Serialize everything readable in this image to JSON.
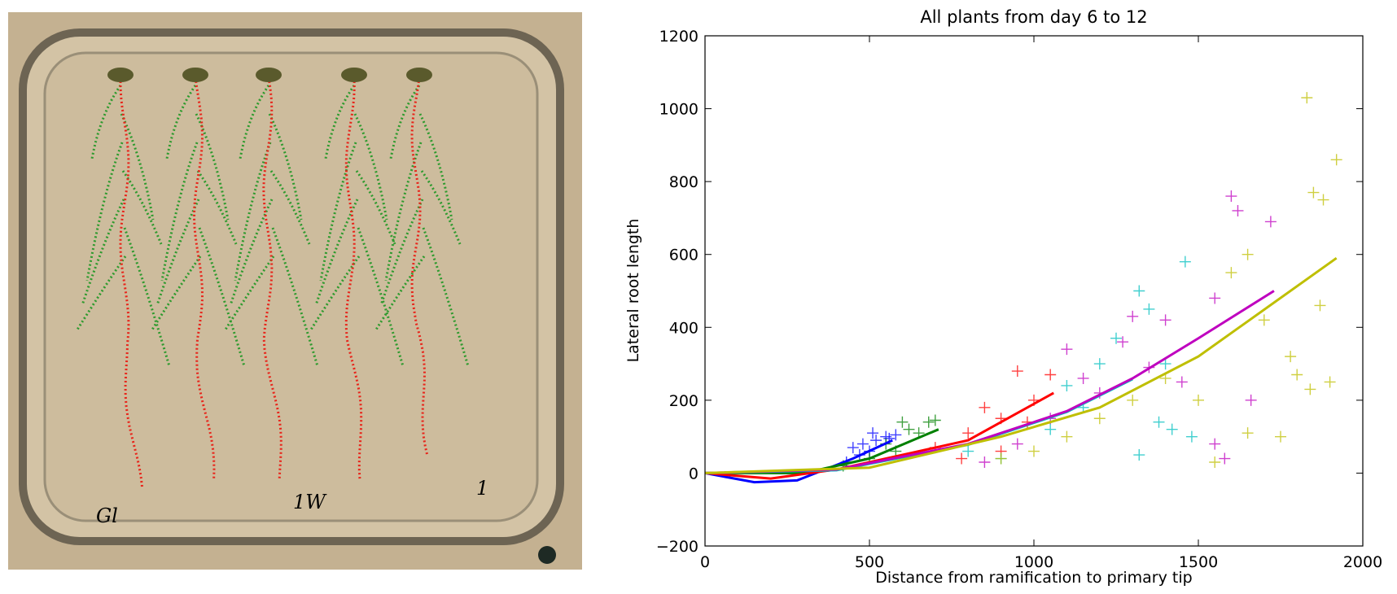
{
  "photo": {
    "labels": [
      "Gl",
      "1W",
      "1"
    ]
  },
  "chart_data": {
    "type": "scatter",
    "title": "All plants from day 6 to 12",
    "x_label": "Distance from ramification to primary tip",
    "y_label": "Lateral root length",
    "xlim": [
      0,
      2000
    ],
    "ylim": [
      -200,
      1200
    ],
    "xticks": [
      0,
      500,
      1000,
      1500,
      2000
    ],
    "yticks": [
      {
        "value": -200,
        "label": "−200"
      },
      0,
      200,
      400,
      600,
      800,
      1000,
      1200
    ],
    "grid": false,
    "series": [
      {
        "color": "#0000ff",
        "mode": "markers",
        "x": [
          450,
          480,
          500,
          520,
          550,
          560,
          580,
          470,
          430,
          510
        ],
        "values": [
          70,
          80,
          60,
          90,
          100,
          95,
          105,
          50,
          30,
          110
        ]
      },
      {
        "color": "#008000",
        "mode": "markers",
        "x": [
          420,
          500,
          600,
          620,
          650,
          680,
          700,
          550,
          580
        ],
        "values": [
          20,
          40,
          140,
          120,
          110,
          140,
          145,
          80,
          60
        ]
      },
      {
        "color": "#ff0000",
        "mode": "markers",
        "x": [
          700,
          800,
          850,
          900,
          950,
          1000,
          1050,
          980,
          780,
          900
        ],
        "values": [
          70,
          110,
          180,
          150,
          280,
          200,
          270,
          140,
          40,
          60
        ]
      },
      {
        "color": "#00bfbf",
        "mode": "markers",
        "x": [
          800,
          900,
          1050,
          1100,
          1200,
          1250,
          1320,
          1350,
          1380,
          1400,
          1460,
          1480,
          1320,
          1420,
          1150
        ],
        "values": [
          60,
          40,
          120,
          240,
          300,
          370,
          500,
          450,
          140,
          300,
          580,
          100,
          50,
          120,
          180
        ]
      },
      {
        "color": "#bf00bf",
        "mode": "markers",
        "x": [
          850,
          950,
          1050,
          1100,
          1200,
          1270,
          1300,
          1400,
          1450,
          1550,
          1580,
          1600,
          1620,
          1660,
          1720,
          1550,
          1350,
          1150
        ],
        "values": [
          30,
          80,
          150,
          340,
          220,
          360,
          430,
          420,
          250,
          480,
          40,
          760,
          720,
          200,
          690,
          80,
          290,
          260
        ]
      },
      {
        "color": "#bfbf00",
        "mode": "markers",
        "x": [
          900,
          1000,
          1100,
          1200,
          1300,
          1400,
          1500,
          1550,
          1600,
          1650,
          1700,
          1750,
          1800,
          1830,
          1850,
          1880,
          1900,
          1920,
          1840,
          1870,
          1780,
          1650
        ],
        "values": [
          40,
          60,
          100,
          150,
          200,
          260,
          200,
          30,
          550,
          110,
          420,
          100,
          270,
          1030,
          770,
          750,
          250,
          860,
          230,
          460,
          320,
          600
        ]
      },
      {
        "color": "#0000ff",
        "mode": "lines",
        "x": [
          0,
          150,
          280,
          450,
          570
        ],
        "values": [
          0,
          -25,
          -20,
          40,
          90
        ]
      },
      {
        "color": "#008000",
        "mode": "lines",
        "x": [
          0,
          300,
          500,
          710
        ],
        "values": [
          0,
          0,
          40,
          120
        ]
      },
      {
        "color": "#ff0000",
        "mode": "lines",
        "x": [
          0,
          200,
          400,
          800,
          1060
        ],
        "values": [
          0,
          -15,
          10,
          90,
          220
        ]
      },
      {
        "color": "#00bfbf",
        "mode": "lines",
        "x": [
          0,
          400,
          800,
          1100,
          1300
        ],
        "values": [
          0,
          8,
          78,
          168,
          258
        ]
      },
      {
        "color": "#bf00bf",
        "mode": "lines",
        "x": [
          0,
          400,
          800,
          1100,
          1300,
          1500,
          1730
        ],
        "values": [
          0,
          10,
          80,
          170,
          260,
          370,
          500
        ]
      },
      {
        "color": "#bfbf00",
        "mode": "lines",
        "x": [
          0,
          500,
          900,
          1200,
          1500,
          1920
        ],
        "values": [
          0,
          15,
          100,
          180,
          320,
          590
        ]
      }
    ]
  }
}
